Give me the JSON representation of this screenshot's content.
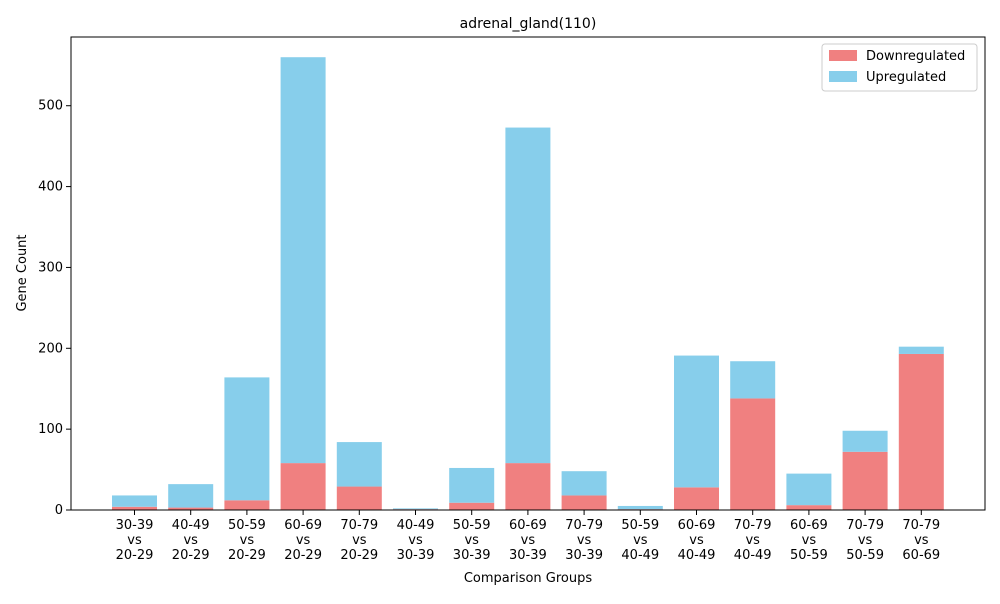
{
  "chart_data": {
    "type": "bar",
    "stacked": true,
    "title": "adrenal_gland(110)",
    "xlabel": "Comparison Groups",
    "ylabel": "Gene Count",
    "ylim": [
      0,
      585
    ],
    "yticks": [
      0,
      100,
      200,
      300,
      400,
      500
    ],
    "grid": false,
    "legend_position": "top-right",
    "categories": [
      [
        "30-39",
        "vs",
        "20-29"
      ],
      [
        "40-49",
        "vs",
        "20-29"
      ],
      [
        "50-59",
        "vs",
        "20-29"
      ],
      [
        "60-69",
        "vs",
        "20-29"
      ],
      [
        "70-79",
        "vs",
        "20-29"
      ],
      [
        "40-49",
        "vs",
        "30-39"
      ],
      [
        "50-59",
        "vs",
        "30-39"
      ],
      [
        "60-69",
        "vs",
        "30-39"
      ],
      [
        "70-79",
        "vs",
        "30-39"
      ],
      [
        "50-59",
        "vs",
        "40-49"
      ],
      [
        "60-69",
        "vs",
        "40-49"
      ],
      [
        "70-79",
        "vs",
        "40-49"
      ],
      [
        "60-69",
        "vs",
        "50-59"
      ],
      [
        "70-79",
        "vs",
        "50-59"
      ],
      [
        "70-79",
        "vs",
        "60-69"
      ]
    ],
    "series": [
      {
        "name": "Downregulated",
        "color": "#f08080",
        "values": [
          4,
          3,
          12,
          58,
          29,
          1,
          9,
          58,
          18,
          1,
          28,
          138,
          6,
          72,
          193
        ]
      },
      {
        "name": "Upregulated",
        "color": "#87ceeb",
        "values": [
          14,
          29,
          152,
          502,
          55,
          1,
          43,
          415,
          30,
          4,
          163,
          46,
          39,
          26,
          9
        ]
      }
    ]
  }
}
